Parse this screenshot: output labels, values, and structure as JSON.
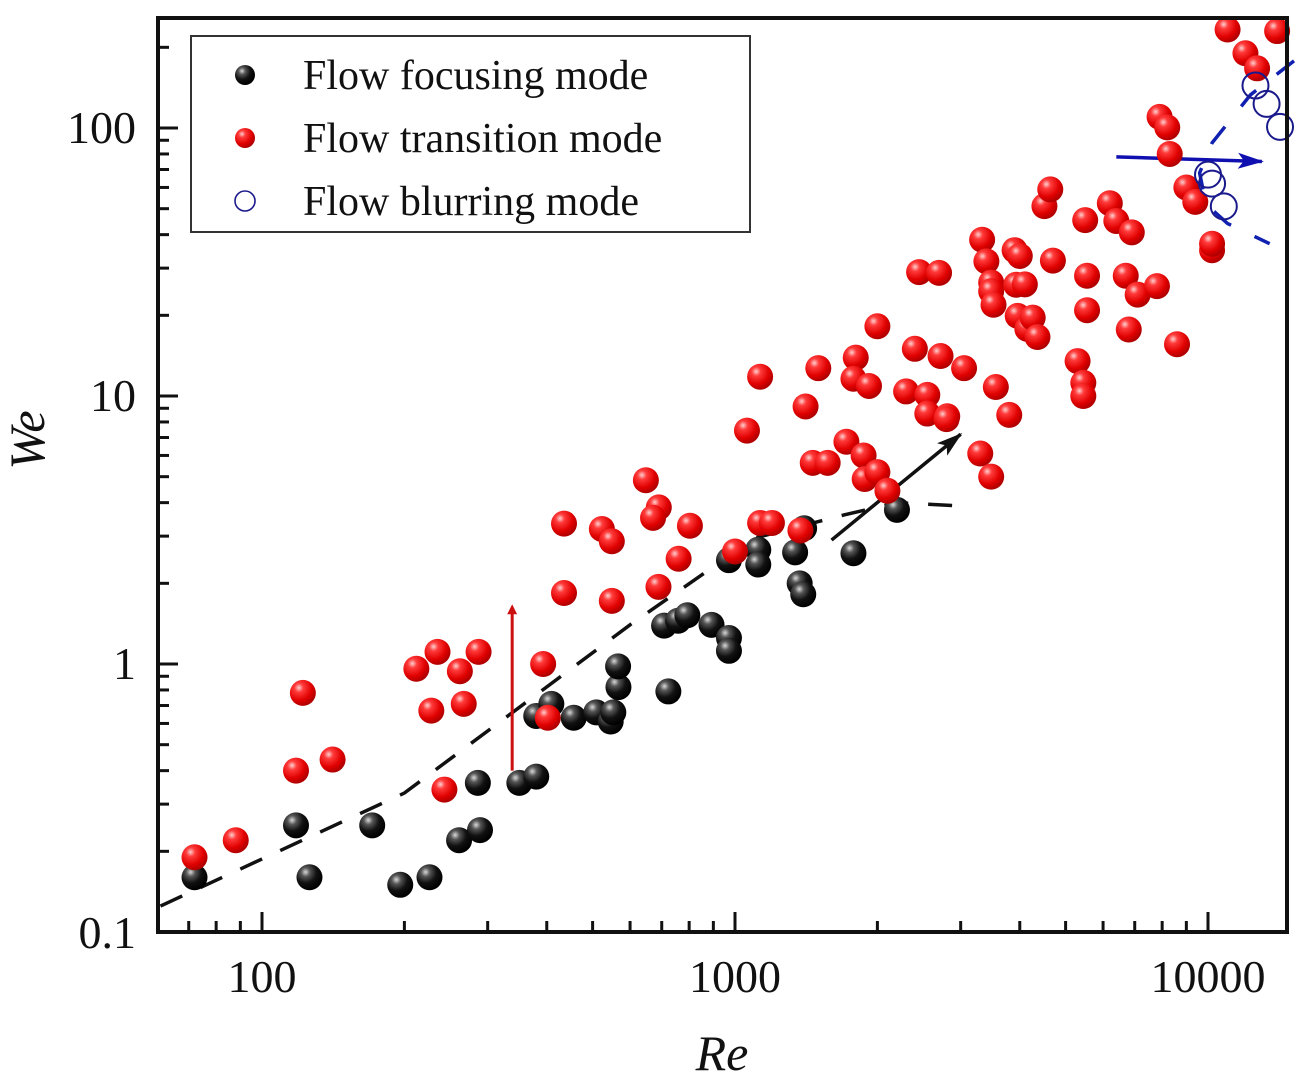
{
  "chart_data": {
    "type": "scatter",
    "title": "",
    "xlabel": "Re",
    "ylabel": "We",
    "xscale": "log",
    "yscale": "log",
    "xlim": [
      60,
      14700
    ],
    "ylim": [
      0.1,
      257
    ],
    "xticks": [
      100,
      1000,
      10000
    ],
    "xtick_labels": [
      "100",
      "1000",
      "10000"
    ],
    "yticks": [
      0.1,
      1,
      10,
      100
    ],
    "ytick_labels": [
      "0.1",
      "1",
      "10",
      "100"
    ],
    "grid": false,
    "legend_position": "top-left",
    "series": [
      {
        "name": "Flow focusing mode",
        "marker": "filled-sphere",
        "color": "#111111",
        "points": [
          [
            72,
            0.16
          ],
          [
            126,
            0.16
          ],
          [
            118,
            0.25
          ],
          [
            171,
            0.25
          ],
          [
            196,
            0.15
          ],
          [
            226,
            0.16
          ],
          [
            261,
            0.22
          ],
          [
            286,
            0.36
          ],
          [
            289,
            0.24
          ],
          [
            350,
            0.36
          ],
          [
            380,
            0.38
          ],
          [
            380,
            0.64
          ],
          [
            409,
            0.71
          ],
          [
            456,
            0.63
          ],
          [
            509,
            0.66
          ],
          [
            546,
            0.61
          ],
          [
            553,
            0.66
          ],
          [
            567,
            0.82
          ],
          [
            566,
            0.98
          ],
          [
            723,
            0.79
          ],
          [
            708,
            1.39
          ],
          [
            758,
            1.45
          ],
          [
            793,
            1.52
          ],
          [
            892,
            1.4
          ],
          [
            971,
            1.25
          ],
          [
            971,
            1.12
          ],
          [
            971,
            2.44
          ],
          [
            1120,
            2.67
          ],
          [
            1120,
            2.35
          ],
          [
            1370,
            2.0
          ],
          [
            1394,
            1.82
          ],
          [
            1340,
            2.61
          ],
          [
            1780,
            2.59
          ],
          [
            2200,
            3.76
          ],
          [
            1400,
            3.21
          ]
        ]
      },
      {
        "name": "Flow transition mode",
        "marker": "filled-sphere",
        "color": "#e01010",
        "points": [
          [
            72,
            0.19
          ],
          [
            88,
            0.22
          ],
          [
            118,
            0.4
          ],
          [
            122,
            0.78
          ],
          [
            141,
            0.44
          ],
          [
            212,
            0.96
          ],
          [
            228,
            0.67
          ],
          [
            235,
            1.11
          ],
          [
            243,
            0.34
          ],
          [
            262,
            0.94
          ],
          [
            267,
            0.71
          ],
          [
            287,
            1.11
          ],
          [
            393,
            1.0
          ],
          [
            402,
            0.63
          ],
          [
            435,
            3.34
          ],
          [
            435,
            1.84
          ],
          [
            523,
            3.19
          ],
          [
            549,
            2.87
          ],
          [
            549,
            1.72
          ],
          [
            690,
            3.84
          ],
          [
            648,
            4.85
          ],
          [
            671,
            3.51
          ],
          [
            689,
            1.94
          ],
          [
            760,
            2.47
          ],
          [
            803,
            3.28
          ],
          [
            1000,
            2.63
          ],
          [
            1060,
            7.43
          ],
          [
            1130,
            11.8
          ],
          [
            1130,
            3.36
          ],
          [
            1197,
            3.36
          ],
          [
            1375,
            3.15
          ],
          [
            1410,
            9.14
          ],
          [
            1500,
            12.7
          ],
          [
            1460,
            5.63
          ],
          [
            1570,
            5.63
          ],
          [
            1720,
            6.75
          ],
          [
            1800,
            13.9
          ],
          [
            1780,
            11.6
          ],
          [
            1870,
            6.0
          ],
          [
            1880,
            4.9
          ],
          [
            1920,
            10.9
          ],
          [
            2000,
            5.2
          ],
          [
            2000,
            18.2
          ],
          [
            2100,
            4.43
          ],
          [
            2300,
            10.4
          ],
          [
            2400,
            15.0
          ],
          [
            2450,
            29.0
          ],
          [
            2550,
            10.1
          ],
          [
            2550,
            8.6
          ],
          [
            2700,
            28.8
          ],
          [
            2810,
            8.4
          ],
          [
            2720,
            14.1
          ],
          [
            2800,
            8.2
          ],
          [
            3050,
            12.7
          ],
          [
            3300,
            6.1
          ],
          [
            3330,
            38.3
          ],
          [
            3400,
            31.8
          ],
          [
            3480,
            5.0
          ],
          [
            3480,
            26.5
          ],
          [
            3480,
            24.6
          ],
          [
            3520,
            21.9
          ],
          [
            3560,
            10.8
          ],
          [
            3900,
            35.0
          ],
          [
            3930,
            26.0
          ],
          [
            4000,
            33.3
          ],
          [
            3960,
            19.9
          ],
          [
            4100,
            26.1
          ],
          [
            4150,
            17.8
          ],
          [
            4260,
            19.6
          ],
          [
            4360,
            16.6
          ],
          [
            3800,
            8.5
          ],
          [
            4510,
            51.1
          ],
          [
            4640,
            59.0
          ],
          [
            4700,
            32.0
          ],
          [
            5300,
            13.5
          ],
          [
            5500,
            45.3
          ],
          [
            5550,
            28.1
          ],
          [
            5450,
            11.2
          ],
          [
            5550,
            20.9
          ],
          [
            5450,
            10.0
          ],
          [
            6200,
            52.4
          ],
          [
            6400,
            45.0
          ],
          [
            6700,
            28.1
          ],
          [
            6800,
            17.7
          ],
          [
            6900,
            40.8
          ],
          [
            7100,
            23.9
          ],
          [
            7800,
            25.7
          ],
          [
            7900,
            110.0
          ],
          [
            8200,
            100.5
          ],
          [
            8300,
            80.0
          ],
          [
            8600,
            15.6
          ],
          [
            9000,
            60.0
          ],
          [
            9400,
            53.0
          ],
          [
            10200,
            35.0
          ],
          [
            10200,
            37.0
          ],
          [
            11000,
            233.0
          ],
          [
            12000,
            190.0
          ],
          [
            12700,
            167.0
          ],
          [
            14000,
            230.0
          ]
        ]
      },
      {
        "name": "Flow blurring mode",
        "marker": "open-circle",
        "color": "#1a1a8c",
        "points": [
          [
            10000,
            67
          ],
          [
            10200,
            62
          ],
          [
            10800,
            51
          ],
          [
            12600,
            144
          ],
          [
            13300,
            123
          ],
          [
            14200,
            101
          ]
        ]
      }
    ],
    "annotations": [
      {
        "type": "dashed-line",
        "color": "#111111",
        "description": "boundary",
        "points": [
          [
            61,
            0.125
          ],
          [
            200,
            0.33
          ],
          [
            600,
            1.4
          ],
          [
            1100,
            2.95
          ],
          [
            1700,
            3.6
          ],
          [
            2200,
            4.0
          ],
          [
            2900,
            3.9
          ]
        ]
      },
      {
        "type": "arrow",
        "color": "#cc1010",
        "from": [
          338,
          0.4
        ],
        "to": [
          338,
          1.6
        ]
      },
      {
        "type": "arrow",
        "color": "#111111",
        "from": [
          1600,
          2.9
        ],
        "to": [
          3000,
          7.2
        ]
      },
      {
        "type": "arrow",
        "color": "#1010b0",
        "from": [
          6400,
          78
        ],
        "to": [
          13000,
          75
        ]
      },
      {
        "type": "dashed-arc",
        "color": "#1020b0",
        "points": [
          [
            15200,
            178
          ],
          [
            12300,
            133
          ],
          [
            10200,
            88
          ],
          [
            9600,
            68
          ],
          [
            9900,
            52
          ],
          [
            11000,
            44
          ],
          [
            13500,
            37
          ]
        ]
      }
    ]
  }
}
